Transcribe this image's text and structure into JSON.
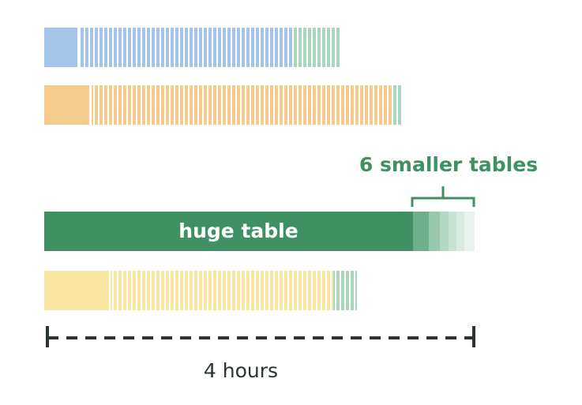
{
  "annotation": "6 smaller tables",
  "huge_table_label": "huge table",
  "duration": "4 hours"
}
